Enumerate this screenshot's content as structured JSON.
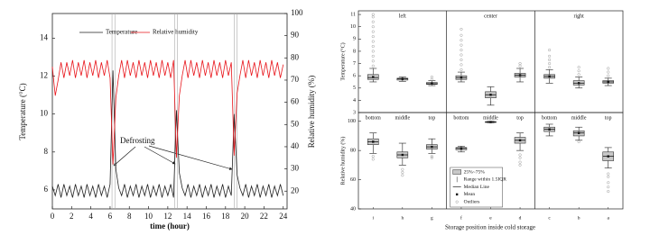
{
  "chart_data": [
    {
      "type": "line",
      "xlabel": "time (hour)",
      "ylabel": "Temperature (°C)",
      "y2label": "Relative humidity (%)",
      "annotation": "Defrosting",
      "xlim": [
        0,
        24.4
      ],
      "xticks": [
        0,
        2,
        4,
        6,
        8,
        10,
        12,
        14,
        16,
        18,
        20,
        22,
        24
      ],
      "ylim": [
        5,
        15.3
      ],
      "yticks": [
        6,
        8,
        10,
        12,
        14
      ],
      "y2lim": [
        12,
        100
      ],
      "y2ticks": [
        20,
        30,
        40,
        50,
        60,
        70,
        80,
        90,
        100
      ],
      "highlight_spans": [
        [
          6.2,
          6.5
        ],
        [
          12.7,
          13.0
        ],
        [
          18.9,
          19.2
        ]
      ],
      "x": [
        0,
        0.3,
        0.6,
        0.9,
        1.2,
        1.5,
        1.8,
        2.1,
        2.4,
        2.7,
        3,
        3.3,
        3.6,
        3.9,
        4.2,
        4.5,
        4.8,
        5.1,
        5.4,
        5.7,
        6,
        6.3,
        6.6,
        6.9,
        7.2,
        7.5,
        7.8,
        8.1,
        8.4,
        8.7,
        9,
        9.3,
        9.6,
        9.9,
        10.2,
        10.5,
        10.8,
        11.1,
        11.4,
        11.7,
        12,
        12.3,
        12.6,
        12.9,
        13.2,
        13.5,
        13.8,
        14.1,
        14.4,
        14.7,
        15,
        15.3,
        15.6,
        15.9,
        16.2,
        16.5,
        16.8,
        17.1,
        17.4,
        17.7,
        18,
        18.3,
        18.6,
        18.9,
        19.2,
        19.5,
        19.8,
        20.1,
        20.4,
        20.7,
        21,
        21.3,
        21.6,
        21.9,
        22.2,
        22.5,
        22.8,
        23.1,
        23.4,
        23.7,
        24
      ],
      "series": [
        {
          "name": "Temperature",
          "color": "#222222",
          "values": [
            6.2,
            5.7,
            6.3,
            5.6,
            6.3,
            5.7,
            6.2,
            5.6,
            6.3,
            5.7,
            6.2,
            5.6,
            6.3,
            5.7,
            6.2,
            5.6,
            6.3,
            5.7,
            6.2,
            5.6,
            6.3,
            12.3,
            7.1,
            6.1,
            5.7,
            6.3,
            5.6,
            6.2,
            5.7,
            6.3,
            5.6,
            6.2,
            5.7,
            6.3,
            5.6,
            6.2,
            5.7,
            6.3,
            5.6,
            6.2,
            5.7,
            6.3,
            5.6,
            10.2,
            6.9,
            6.1,
            5.7,
            6.3,
            5.6,
            6.2,
            5.7,
            6.3,
            5.6,
            6.2,
            5.7,
            6.3,
            5.6,
            6.2,
            5.7,
            6.3,
            5.6,
            6.2,
            5.7,
            10.0,
            6.8,
            6.1,
            5.7,
            6.3,
            5.6,
            6.2,
            5.7,
            6.3,
            5.6,
            6.2,
            5.7,
            6.3,
            5.6,
            6.2,
            5.7,
            6.3,
            5.7
          ]
        },
        {
          "name": "Relative humidity",
          "color": "#e8141a",
          "axis": "y2",
          "values": [
            76,
            63,
            70,
            78,
            71,
            78,
            72,
            79,
            71,
            78,
            72,
            79,
            71,
            78,
            72,
            79,
            71,
            78,
            72,
            79,
            71,
            32,
            62,
            72,
            79,
            71,
            79,
            72,
            78,
            71,
            79,
            72,
            78,
            71,
            79,
            72,
            78,
            71,
            79,
            72,
            78,
            71,
            79,
            35,
            63,
            72,
            79,
            71,
            79,
            72,
            78,
            71,
            79,
            72,
            78,
            71,
            79,
            72,
            78,
            71,
            79,
            72,
            78,
            36,
            64,
            72,
            79,
            71,
            79,
            72,
            78,
            71,
            79,
            72,
            78,
            71,
            79,
            72,
            78,
            71,
            77
          ]
        }
      ]
    },
    {
      "type": "box",
      "panels": [
        "left",
        "center",
        "right"
      ],
      "groups": [
        "bottom",
        "middle",
        "top"
      ],
      "categories": [
        "i",
        "h",
        "g",
        "f",
        "e",
        "d",
        "c",
        "b",
        "a"
      ],
      "xlabel": "Storage position inside cold storage",
      "legend": [
        "25%~75%",
        "Range within 1.5IQR",
        "Median Line",
        "Mean",
        "Outliers"
      ],
      "box_color": "#c8c8c8",
      "rows": [
        {
          "ylabel": "Temperature (°C)",
          "ylim": [
            3,
            11.3
          ],
          "yticks": [
            3,
            4,
            5,
            6,
            7,
            8,
            9,
            10,
            11
          ],
          "boxes": [
            {
              "q1": 5.7,
              "median": 5.85,
              "q3": 6.1,
              "whisker_low": 5.5,
              "whisker_high": 6.6,
              "mean": 5.9,
              "outliers": [
                6.8,
                7.2,
                7.6,
                8,
                8.4,
                8.8,
                9.2,
                9.6,
                10,
                10.4,
                10.8,
                11
              ]
            },
            {
              "q1": 5.65,
              "median": 5.75,
              "q3": 5.8,
              "whisker_low": 5.55,
              "whisker_high": 5.9,
              "mean": 5.75,
              "outliers": []
            },
            {
              "q1": 5.3,
              "median": 5.35,
              "q3": 5.45,
              "whisker_low": 5.2,
              "whisker_high": 5.6,
              "mean": 5.38,
              "outliers": [
                5.7,
                5.9
              ]
            },
            {
              "q1": 5.7,
              "median": 5.85,
              "q3": 6.0,
              "whisker_low": 5.5,
              "whisker_high": 6.3,
              "mean": 5.85,
              "outliers": [
                6.5,
                6.9,
                7.3,
                7.7,
                8.1,
                8.5,
                8.9,
                9.3,
                9.8
              ]
            },
            {
              "q1": 4.2,
              "median": 4.45,
              "q3": 4.7,
              "whisker_low": 3.6,
              "whisker_high": 5.1,
              "mean": 4.45,
              "outliers": []
            },
            {
              "q1": 5.9,
              "median": 6.05,
              "q3": 6.2,
              "whisker_low": 5.5,
              "whisker_high": 6.6,
              "mean": 6.05,
              "outliers": [
                6.8,
                7.0
              ]
            },
            {
              "q1": 5.8,
              "median": 5.95,
              "q3": 6.1,
              "whisker_low": 5.4,
              "whisker_high": 6.5,
              "mean": 5.95,
              "outliers": [
                6.7,
                7.0,
                7.3,
                7.6,
                8.1
              ]
            },
            {
              "q1": 5.25,
              "median": 5.4,
              "q3": 5.6,
              "whisker_low": 5.0,
              "whisker_high": 5.9,
              "mean": 5.4,
              "outliers": [
                6.1,
                6.4,
                6.7
              ]
            },
            {
              "q1": 5.4,
              "median": 5.5,
              "q3": 5.6,
              "whisker_low": 5.2,
              "whisker_high": 5.8,
              "mean": 5.5,
              "outliers": [
                6.0,
                6.3,
                6.6
              ]
            }
          ]
        },
        {
          "ylabel": "Relative humidity (%)",
          "ylim": [
            40,
            106
          ],
          "yticks": [
            40,
            60,
            80,
            100
          ],
          "boxes": [
            {
              "q1": 84,
              "median": 86,
              "q3": 88,
              "whisker_low": 78,
              "whisker_high": 92,
              "mean": 86,
              "outliers": [
                74,
                76
              ]
            },
            {
              "q1": 75,
              "median": 77,
              "q3": 79,
              "whisker_low": 70,
              "whisker_high": 85,
              "mean": 77,
              "outliers": [
                63,
                65,
                67
              ]
            },
            {
              "q1": 81,
              "median": 82.5,
              "q3": 84,
              "whisker_low": 78,
              "whisker_high": 88,
              "mean": 82.5,
              "outliers": [
                75,
                76
              ]
            },
            {
              "q1": 80.5,
              "median": 81.5,
              "q3": 82,
              "whisker_low": 79,
              "whisker_high": 83,
              "mean": 81.5,
              "outliers": []
            },
            {
              "q1": 99.2,
              "median": 99.5,
              "q3": 99.8,
              "whisker_low": 99,
              "whisker_high": 100,
              "mean": 99.5,
              "outliers": []
            },
            {
              "q1": 85,
              "median": 87,
              "q3": 89,
              "whisker_low": 80,
              "whisker_high": 92,
              "mean": 87,
              "outliers": [
                70,
                72,
                75,
                77
              ]
            },
            {
              "q1": 93,
              "median": 94.5,
              "q3": 96,
              "whisker_low": 90,
              "whisker_high": 98,
              "mean": 94.5,
              "outliers": []
            },
            {
              "q1": 90,
              "median": 92,
              "q3": 93.5,
              "whisker_low": 87,
              "whisker_high": 96,
              "mean": 92,
              "outliers": [
                86
              ]
            },
            {
              "q1": 73,
              "median": 76,
              "q3": 79,
              "whisker_low": 68,
              "whisker_high": 82,
              "mean": 76,
              "outliers": [
                52,
                55,
                58,
                62,
                64
              ]
            }
          ]
        }
      ]
    }
  ]
}
